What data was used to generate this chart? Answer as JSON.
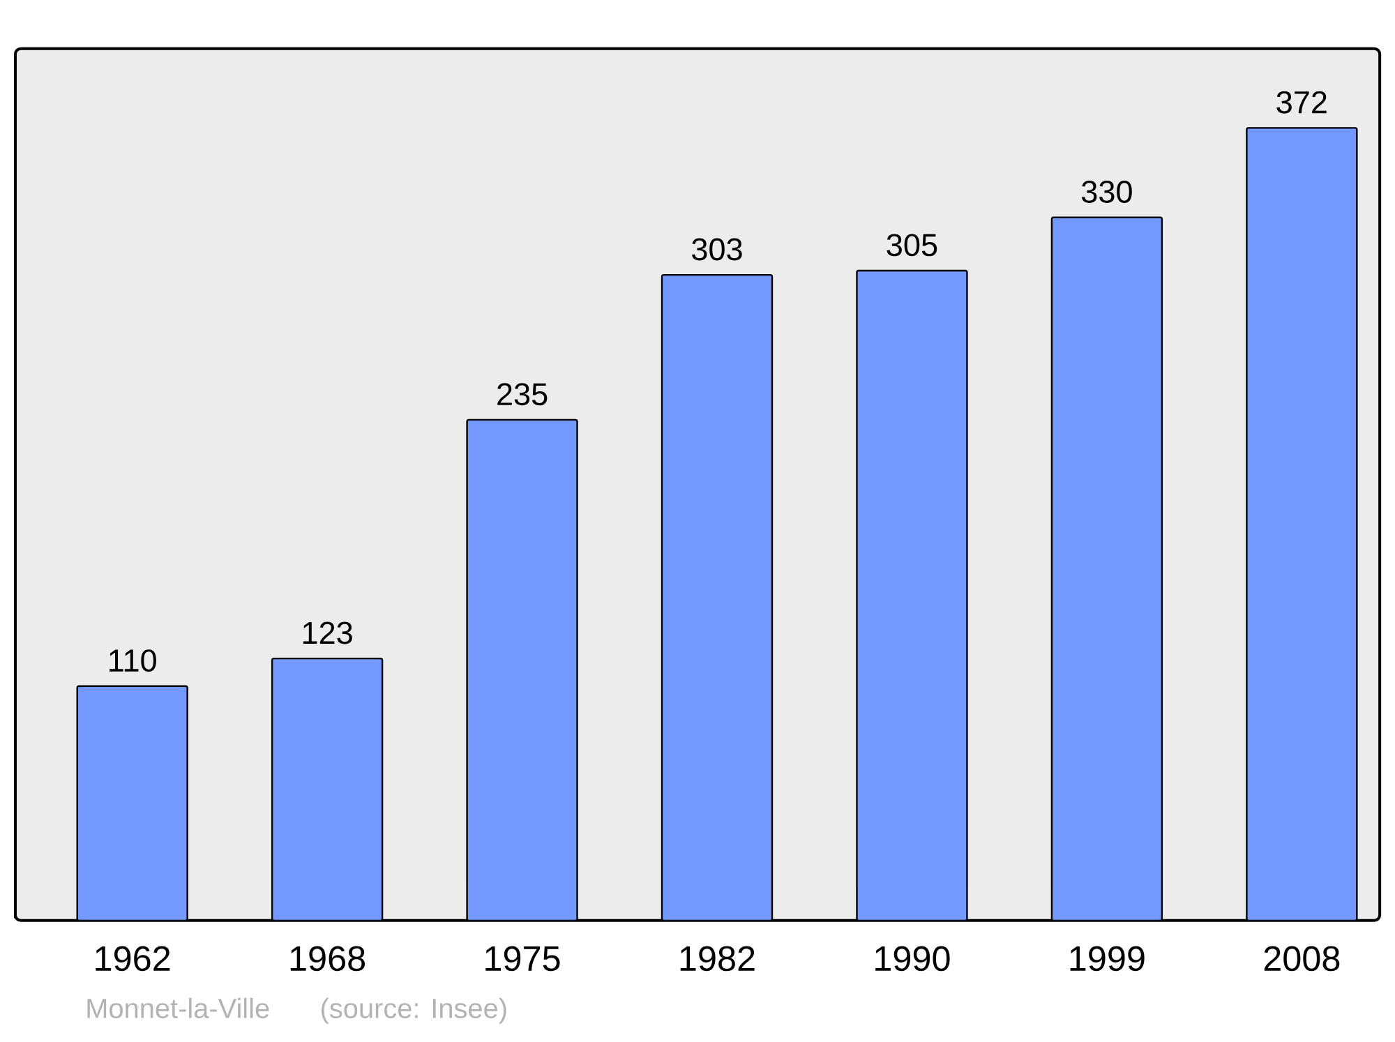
{
  "chart_data": {
    "type": "bar",
    "categories": [
      "1962",
      "1968",
      "1975",
      "1982",
      "1990",
      "1999",
      "2008"
    ],
    "values": [
      110,
      123,
      235,
      303,
      305,
      330,
      372
    ],
    "color": "#7399ff",
    "data_labels": true,
    "tick_labels": "x",
    "annotations": [
      "Monnet-la-Ville",
      "(source: Insee)"
    ]
  }
}
